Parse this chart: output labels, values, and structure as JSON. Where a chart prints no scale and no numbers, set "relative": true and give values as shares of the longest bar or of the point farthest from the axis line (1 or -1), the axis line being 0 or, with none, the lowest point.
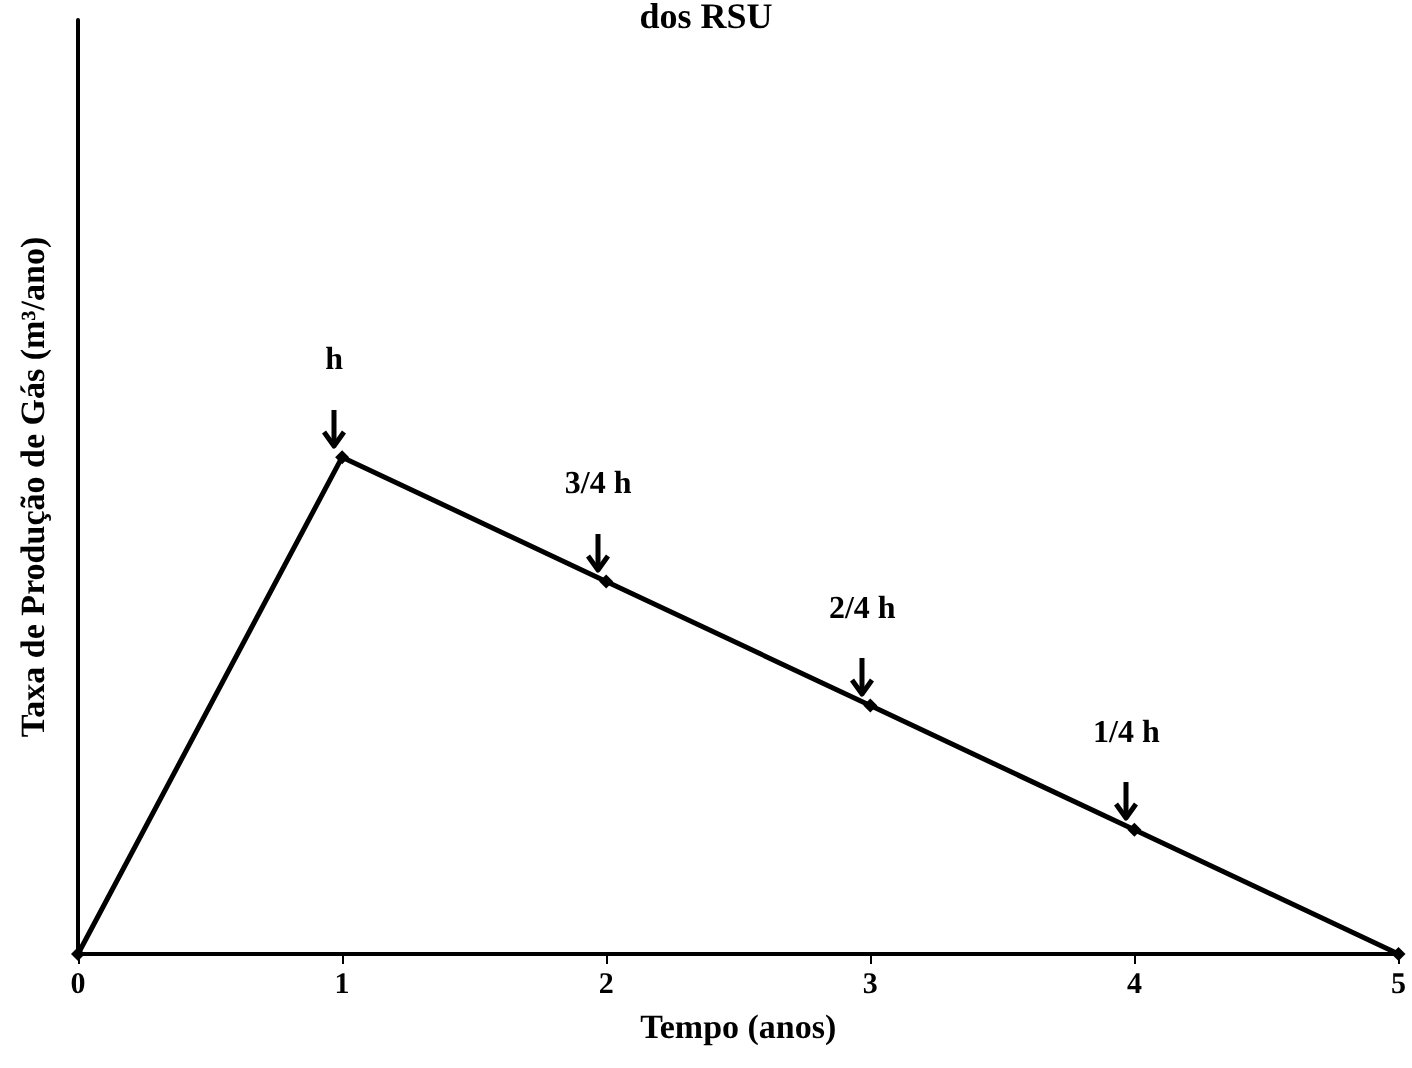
{
  "chart_data": {
    "type": "line",
    "title": "dos RSU",
    "xlabel": "Tempo (anos)",
    "ylabel": "Taxa de Produção de Gás (m³/ano)",
    "x": [
      0,
      1,
      2,
      3,
      4,
      5
    ],
    "values": [
      0,
      1,
      0.75,
      0.5,
      0.25,
      0
    ],
    "color": "#000000",
    "relative": true,
    "xlim": [
      0,
      5
    ],
    "xticks": [
      0,
      1,
      2,
      3,
      4,
      5
    ],
    "marker": "diamond",
    "line_style": "solid",
    "annotations": [
      {
        "text": "h",
        "x": 1,
        "y": 1
      },
      {
        "text": "3/4 h",
        "x": 2,
        "y": 0.75
      },
      {
        "text": "2/4 h",
        "x": 3,
        "y": 0.5
      },
      {
        "text": "1/4 h",
        "x": 4,
        "y": 0.25
      }
    ]
  }
}
